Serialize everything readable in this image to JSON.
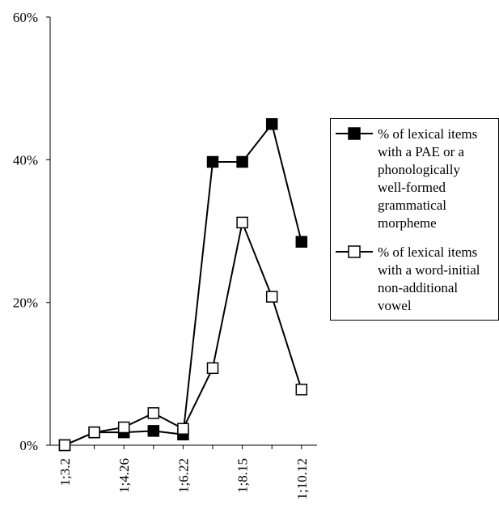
{
  "chart_data": {
    "type": "line",
    "categories": [
      "1;3.2",
      "",
      "1;4.26",
      "",
      "1;6.22",
      "",
      "1;8.15",
      "",
      "1;10.12"
    ],
    "x_tick_labels": [
      "1;3.2",
      "1;4.26",
      "1;6.22",
      "1;8.15",
      "1;10.12"
    ],
    "y_tick_labels": [
      "0%",
      "20%",
      "40%",
      "60%"
    ],
    "ylim": [
      0,
      60
    ],
    "grid": false,
    "legend_position": "right",
    "series": [
      {
        "name": "% of  lexical items with a PAE or a phonologically well-formed grammatical morpheme",
        "marker": "filled-square",
        "color": "#000000",
        "values": [
          0,
          1.8,
          1.8,
          2.0,
          1.5,
          39.7,
          39.7,
          45.0,
          28.5
        ]
      },
      {
        "name": "% of lexical items with a word-initial non-additional vowel",
        "marker": "open-square",
        "color": "#000000",
        "values": [
          0,
          1.8,
          2.5,
          4.5,
          2.3,
          10.8,
          31.2,
          20.8,
          7.8
        ]
      }
    ]
  },
  "legend": {
    "series1_lines": [
      "% of  lexical items",
      "with a PAE or a",
      "phonologically",
      "well-formed",
      "grammatical",
      "morpheme"
    ],
    "series2_lines": [
      "% of lexical items",
      "with a word-initial",
      "non-additional",
      "vowel"
    ]
  }
}
